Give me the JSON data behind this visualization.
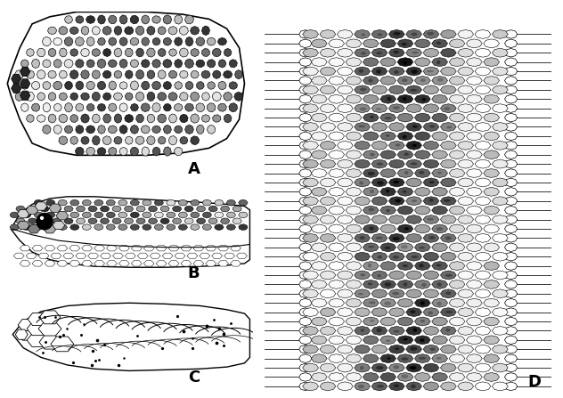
{
  "background_color": "#ffffff",
  "label_A": "A",
  "label_B": "B",
  "label_C": "C",
  "label_D": "D",
  "label_fontsize": 13,
  "label_fontweight": "bold",
  "fig_width": 6.32,
  "fig_height": 4.47,
  "dpi": 100
}
